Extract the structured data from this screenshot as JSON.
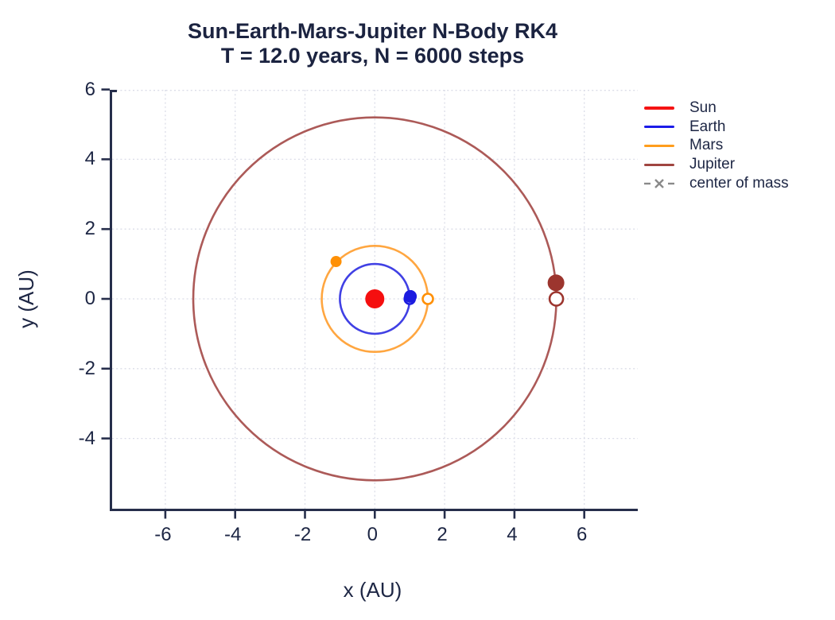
{
  "colors": {
    "text": "#1d2644",
    "spine": "#262e4b",
    "grid": "#dbdde8",
    "background": "#ffffff"
  },
  "chart_data": {
    "type": "line",
    "title": "Sun-Earth-Mars-Jupiter N-Body RK4",
    "subtitle": "T = 12.0 years, N = 6000 steps",
    "params": {
      "T_years": 12.0,
      "N_steps": 6000,
      "integrator": "RK4"
    },
    "xlabel": "x (AU)",
    "ylabel": "y (AU)",
    "xlim": [
      -7.5,
      7.5
    ],
    "ylim": [
      -6,
      6
    ],
    "x_ticks": [
      -6,
      -4,
      -2,
      0,
      2,
      4,
      6
    ],
    "y_ticks": [
      6,
      4,
      2,
      0,
      -2,
      -4
    ],
    "grid": {
      "visible": true,
      "style": "dashed"
    },
    "legend_position": "outside right top",
    "legend": [
      {
        "label": "Sun",
        "color": "#f51414",
        "style": "solid"
      },
      {
        "label": "Earth",
        "color": "#1c1ce8",
        "style": "solid"
      },
      {
        "label": "Mars",
        "color": "#ff9d1c",
        "style": "solid"
      },
      {
        "label": "Jupiter",
        "color": "#a04540",
        "style": "solid"
      },
      {
        "label": "center of mass",
        "color": "#8a8a8a",
        "style": "dashed-x"
      }
    ],
    "bodies": [
      {
        "name": "Sun",
        "trail_color": "#f51414",
        "marker_color": "#f50f0f",
        "orbit_radius_au": 0,
        "current_position_au": [
          0,
          0
        ],
        "marker_radius_px": 12
      },
      {
        "name": "Earth",
        "trail_color": "#4040e4",
        "marker_color": "#1c1ce0",
        "orbit_radius_au": 1.0,
        "start_position_au": [
          1.0,
          0
        ],
        "current_position_au": [
          1.02,
          0.07
        ],
        "marker_radius_px": 8,
        "start_marker_radius_px": 6.5
      },
      {
        "name": "Mars",
        "trail_color": "#ffa640",
        "marker_color": "#ff9005",
        "orbit_radius_au": 1.52,
        "start_position_au": [
          1.52,
          0
        ],
        "current_position_au": [
          -1.11,
          1.07
        ],
        "marker_radius_px": 7,
        "start_marker_radius_px": 6.5
      },
      {
        "name": "Jupiter",
        "trail_color": "#ac5a58",
        "marker_color": "#9c352e",
        "orbit_radius_au": 5.2,
        "start_position_au": [
          5.2,
          0
        ],
        "current_position_au": [
          5.19,
          0.46
        ],
        "marker_radius_px": 10.5,
        "start_marker_radius_px": 8.5
      },
      {
        "name": "center of mass",
        "marker": "x",
        "marker_color": "#8a8a8a",
        "current_position_au": [
          0,
          0
        ]
      }
    ]
  }
}
